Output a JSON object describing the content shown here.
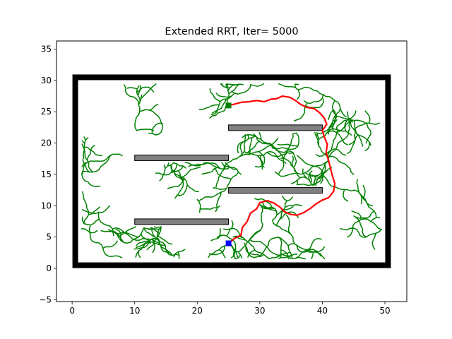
{
  "chart_data": {
    "type": "scatter",
    "title": "Extended RRT, Iter= 5000",
    "xlabel": "",
    "ylabel": "",
    "xlim": [
      -2.5,
      53.5
    ],
    "ylim": [
      -5.3,
      36.3
    ],
    "xticks": [
      0,
      10,
      20,
      30,
      40,
      50
    ],
    "yticks": [
      -5,
      0,
      5,
      10,
      15,
      20,
      25,
      30,
      35
    ],
    "tick_labels": {
      "x": [
        "0",
        "10",
        "20",
        "30",
        "40",
        "50"
      ],
      "y": [
        "−5",
        "0",
        "5",
        "10",
        "15",
        "20",
        "25",
        "30",
        "35"
      ]
    },
    "grid": false,
    "boundary": {
      "x0": 0.5,
      "y0": 0.5,
      "x1": 50.5,
      "y1": 30.5,
      "color": "#000000"
    },
    "obstacles": [
      {
        "x0": 25,
        "x1": 40,
        "y0": 22.0,
        "y1": 22.9,
        "color": "#808080"
      },
      {
        "x0": 10,
        "x1": 25,
        "y0": 17.2,
        "y1": 18.1,
        "color": "#808080"
      },
      {
        "x0": 25,
        "x1": 40,
        "y0": 12.0,
        "y1": 12.9,
        "color": "#808080"
      },
      {
        "x0": 10,
        "x1": 25,
        "y0": 7.0,
        "y1": 7.9,
        "color": "#808080"
      }
    ],
    "start": {
      "x": 25,
      "y": 4,
      "color": "#0000ff"
    },
    "goal": {
      "x": 25,
      "y": 26,
      "color": "#008000"
    },
    "tree_color": "#008000",
    "path_color": "#ff0000",
    "path": [
      [
        25,
        4
      ],
      [
        26,
        4.8
      ],
      [
        27,
        5.3
      ],
      [
        27.2,
        6.5
      ],
      [
        28,
        7.5
      ],
      [
        28.5,
        8.8
      ],
      [
        29.5,
        9.5
      ],
      [
        30,
        10.5
      ],
      [
        31.2,
        10.8
      ],
      [
        32.3,
        10.4
      ],
      [
        33.2,
        9.8
      ],
      [
        34,
        9
      ],
      [
        35,
        8.6
      ],
      [
        36,
        8.5
      ],
      [
        37,
        8.9
      ],
      [
        38,
        9.5
      ],
      [
        39,
        10.3
      ],
      [
        40,
        10.9
      ],
      [
        41,
        11.3
      ],
      [
        41.8,
        12.3
      ],
      [
        42,
        13.5
      ],
      [
        41.6,
        14.8
      ],
      [
        41.3,
        16.0
      ],
      [
        41.0,
        17.2
      ],
      [
        40.6,
        18.5
      ],
      [
        40.8,
        19.8
      ],
      [
        40.3,
        21.0
      ],
      [
        40.0,
        22.0
      ],
      [
        40.7,
        23.0
      ],
      [
        40.3,
        24.0
      ],
      [
        39.6,
        24.8
      ],
      [
        38.7,
        25.5
      ],
      [
        37.5,
        25.7
      ],
      [
        36.5,
        26.2
      ],
      [
        35.7,
        26.8
      ],
      [
        34.8,
        27.3
      ],
      [
        33.6,
        27.5
      ],
      [
        32.7,
        27.1
      ],
      [
        31.8,
        27.0
      ],
      [
        30.7,
        26.6
      ],
      [
        29.5,
        26.8
      ],
      [
        28.3,
        26.6
      ],
      [
        27.0,
        26.5
      ],
      [
        25.9,
        26.2
      ],
      [
        25,
        26
      ]
    ],
    "path_width": 2.2
  }
}
